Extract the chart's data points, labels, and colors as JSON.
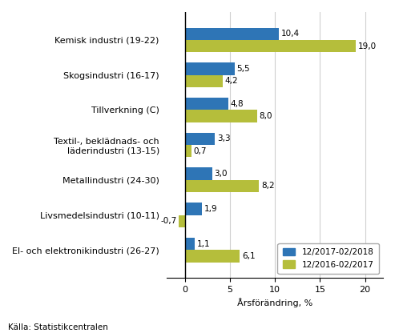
{
  "categories": [
    "Kemisk industri (19-22)",
    "Skogsindustri (16-17)",
    "Tillverkning (C)",
    "Textil-, beklädnads- och\nläderindustri (13-15)",
    "Metallindustri (24-30)",
    "Livsmedelsindustri (10-11)",
    "El- och elektronikindustri (26-27)"
  ],
  "values_2017_2018": [
    10.4,
    5.5,
    4.8,
    3.3,
    3.0,
    1.9,
    1.1
  ],
  "values_2016_2017": [
    19.0,
    4.2,
    8.0,
    0.7,
    8.2,
    -0.7,
    6.1
  ],
  "color_2017_2018": "#2E75B6",
  "color_2016_2017": "#B5BE3B",
  "xlabel": "Årsförändring, %",
  "legend_label_1": "12/2017-02/2018",
  "legend_label_2": "12/2016-02/2017",
  "source_text": "Källa: Statistikcentralen",
  "xlim": [
    -2,
    22
  ],
  "xticks": [
    0,
    5,
    10,
    15,
    20
  ],
  "bar_height": 0.35
}
